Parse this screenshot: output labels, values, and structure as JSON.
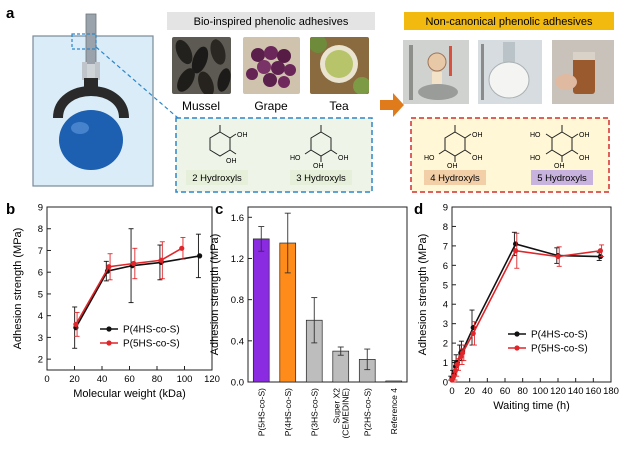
{
  "panel_a": {
    "letter": "a",
    "bio_title": "Bio-inspired phenolic adhesives",
    "noncanonical_title": "Non-canonical phenolic adhesives",
    "photos": [
      "Mussel",
      "Grape",
      "Tea"
    ],
    "bio_labels": [
      "2 Hydroxyls",
      "3 Hydroxyls"
    ],
    "noncanonical_labels": [
      "4 Hydroxyls",
      "5 Hydroxyls"
    ],
    "chem_labels": {
      "oh": "OH",
      "ho": "HO"
    },
    "colors": {
      "bio_box_border": "#2e86c9",
      "bio_box_fill": "#eef5e8",
      "nc_box_border": "#d32f2f",
      "nc_box_fill": "#fff7d6",
      "nc_title_bg": "#f2b90f",
      "bio_title_bg": "#e4e4e4",
      "arrow": "#e07b1c",
      "label_4oh": "#f3cfa8",
      "label_5oh": "#c8b3de",
      "kettlebell": "#1d5fb0"
    }
  },
  "chart_data": [
    {
      "panel": "b",
      "type": "line",
      "xlabel": "Molecular weight (kDa)",
      "ylabel": "Adhesion strength (MPa)",
      "xlim": [
        0,
        120
      ],
      "ylim": [
        1.5,
        9
      ],
      "xticks": [
        0,
        20,
        40,
        60,
        80,
        100,
        120
      ],
      "yticks": [
        2,
        3,
        4,
        5,
        6,
        7,
        8,
        9
      ],
      "legend_position": "bottom-right",
      "series": [
        {
          "name": "P(4HS-co-S)",
          "color": "#111111",
          "x": [
            21,
            44,
            62,
            83,
            111
          ],
          "y": [
            3.45,
            6.05,
            6.3,
            6.45,
            6.75
          ],
          "err": [
            0.95,
            0.45,
            1.7,
            0.8,
            1.0
          ]
        },
        {
          "name": "P(5HS-co-S)",
          "color": "#e0262a",
          "x": [
            21,
            45,
            63,
            83,
            98
          ],
          "y": [
            3.6,
            6.25,
            6.4,
            6.55,
            7.1
          ],
          "err": [
            0.55,
            0.6,
            0.7,
            0.85,
            0.5
          ]
        }
      ]
    },
    {
      "panel": "c",
      "type": "bar",
      "ylabel": "Adhesion strength (MPa)",
      "ylim": [
        0,
        1.7
      ],
      "yticks": [
        0.0,
        0.4,
        0.8,
        1.2,
        1.6
      ],
      "categories": [
        "P(5HS-co-S)",
        "P(4HS-co-S)",
        "P(3HS-co-S)",
        "Super X2 (CEMEDINE)",
        "P(2HS-co-S)",
        "Reference 4"
      ],
      "category_lines": [
        [
          "P(5HS-co-S)"
        ],
        [
          "P(4HS-co-S)"
        ],
        [
          "P(3HS-co-S)"
        ],
        [
          "Super X2",
          "(CEMEDINE)"
        ],
        [
          "P(2HS-co-S)"
        ],
        [
          "Reference 4"
        ]
      ],
      "values": [
        1.39,
        1.35,
        0.6,
        0.3,
        0.22,
        0.01
      ],
      "errors": [
        0.12,
        0.29,
        0.22,
        0.04,
        0.1,
        0.0
      ],
      "colors": [
        "#8a2be2",
        "#ff8c1a",
        "#bdbdbd",
        "#bdbdbd",
        "#bdbdbd",
        "#bdbdbd"
      ]
    },
    {
      "panel": "d",
      "type": "line",
      "xlabel": "Waiting time (h)",
      "ylabel": "Adhesion strength (MPa)",
      "xlim": [
        0,
        180
      ],
      "ylim": [
        0,
        9
      ],
      "xticks": [
        0,
        20,
        40,
        60,
        80,
        100,
        120,
        140,
        160,
        180
      ],
      "yticks": [
        0,
        1,
        2,
        3,
        4,
        5,
        6,
        7,
        8,
        9
      ],
      "legend_position": "bottom-right",
      "series": [
        {
          "name": "P(4HS-co-S)",
          "color": "#111111",
          "x": [
            0,
            2,
            4,
            6,
            10,
            12,
            24,
            72,
            120,
            168
          ],
          "y": [
            0.2,
            0.4,
            0.8,
            1.0,
            1.5,
            1.6,
            2.8,
            7.1,
            6.5,
            6.45
          ],
          "err": [
            0.1,
            0.2,
            0.3,
            0.4,
            0.4,
            0.5,
            0.9,
            0.6,
            0.4,
            0.2
          ]
        },
        {
          "name": "P(5HS-co-S)",
          "color": "#e0262a",
          "x": [
            0,
            2,
            4,
            6,
            10,
            12,
            24,
            72,
            120,
            168
          ],
          "y": [
            0.1,
            0.3,
            0.6,
            0.9,
            1.3,
            1.5,
            2.5,
            6.75,
            6.45,
            6.75
          ],
          "err": [
            0.1,
            0.2,
            0.3,
            0.3,
            0.4,
            0.4,
            0.6,
            0.9,
            0.5,
            0.3
          ]
        }
      ]
    }
  ]
}
